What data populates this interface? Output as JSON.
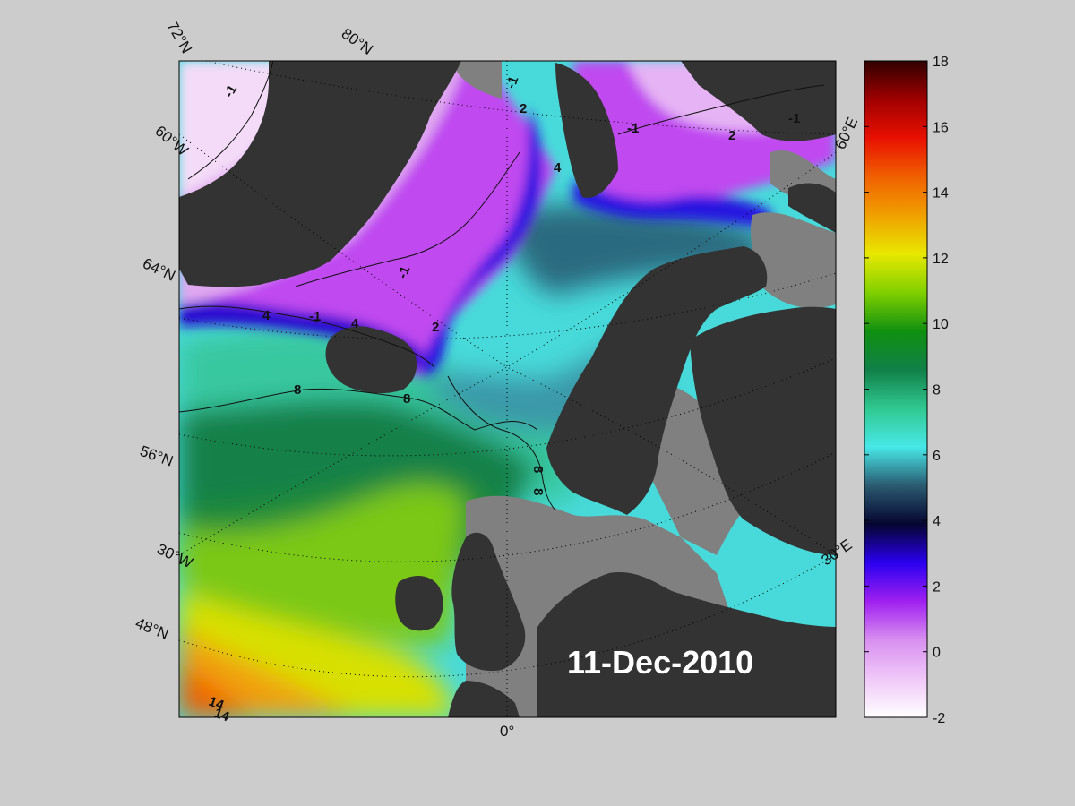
{
  "date_label": "11-Dec-2010",
  "colorbar": {
    "ticks": [
      "18",
      "16",
      "14",
      "12",
      "10",
      "8",
      "6",
      "4",
      "2",
      "0",
      "-2"
    ],
    "min": -2,
    "max": 18,
    "gradient": [
      "#ffffff",
      "#f0c8f8",
      "#d890f0",
      "#a020f0",
      "#2a00f0",
      "#050530",
      "#2a5a70",
      "#48e8e8",
      "#30c890",
      "#108048",
      "#109010",
      "#80d000",
      "#e8e800",
      "#f0a000",
      "#f06000",
      "#e81000",
      "#a00000",
      "#300000"
    ]
  },
  "grid_labels": {
    "lat_72": "72°N",
    "lat_80": "80°N",
    "lat_64": "64°N",
    "lat_56": "56°N",
    "lat_48": "48°N",
    "lon_60w": "60°W",
    "lon_30w": "30°W",
    "lon_0": "0°",
    "lon_30e": "30°E",
    "lon_60e": "60°E"
  },
  "contour_labels": {
    "c_m1_a": "-1",
    "c_m1_b": "-1",
    "c_m1_c": "-1",
    "c_m1_d": "-1",
    "c_m1_e": "-1",
    "c_m1_f": "-1",
    "c_2_a": "2",
    "c_2_b": "2",
    "c_2_c": "2",
    "c_4_a": "4",
    "c_4_b": "4",
    "c_4_c": "4",
    "c_8_a": "8",
    "c_8_b": "8",
    "c_8_c": "8",
    "c_8_d": "8",
    "c_14_a": "14",
    "c_14_b": "14"
  },
  "colors": {
    "background": "#cccccc",
    "land": "#333333",
    "unmapped_sea": "#808080"
  }
}
